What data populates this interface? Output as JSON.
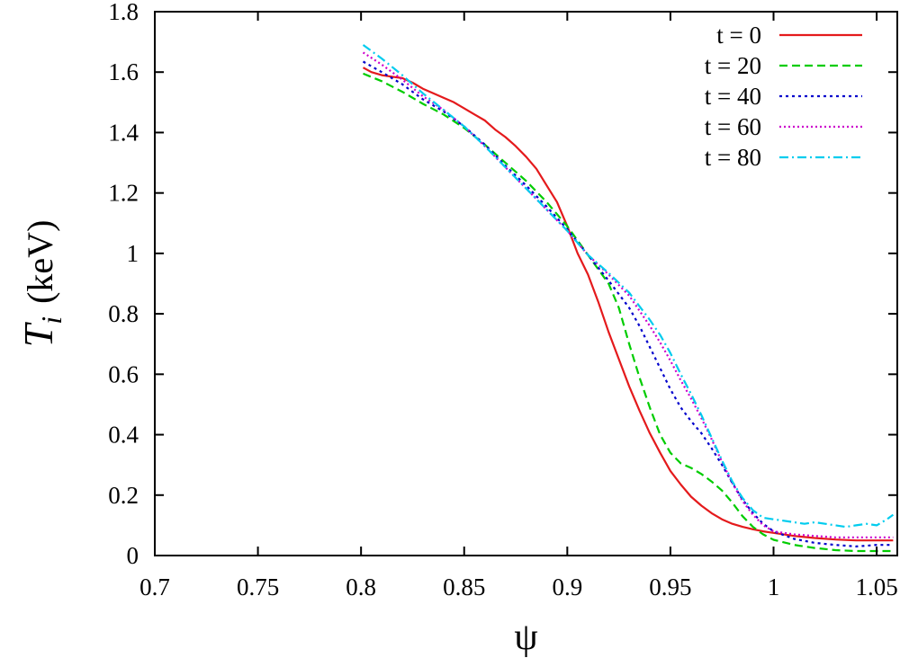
{
  "chart_data": {
    "type": "line",
    "title": "",
    "xlabel": "ψ",
    "ylabel": {
      "symbol": "T",
      "subscript": "i",
      "unit": "(keV)"
    },
    "xlim": [
      0.7,
      1.06
    ],
    "ylim": [
      0,
      1.8
    ],
    "xticks": [
      "0.7",
      "0.75",
      "0.8",
      "0.85",
      "0.9",
      "0.95",
      "1",
      "1.05"
    ],
    "yticks": [
      "0",
      "0.2",
      "0.4",
      "0.6",
      "0.8",
      "1",
      "1.2",
      "1.4",
      "1.6",
      "1.8"
    ],
    "grid": false,
    "legend_position": "top-right",
    "series": [
      {
        "name": "t = 0",
        "color": "#e41a1c",
        "dash": "solid",
        "x": [
          0.801,
          0.805,
          0.81,
          0.815,
          0.82,
          0.825,
          0.83,
          0.835,
          0.84,
          0.845,
          0.85,
          0.855,
          0.86,
          0.865,
          0.87,
          0.875,
          0.88,
          0.885,
          0.89,
          0.895,
          0.9,
          0.905,
          0.91,
          0.915,
          0.92,
          0.925,
          0.93,
          0.935,
          0.94,
          0.945,
          0.95,
          0.955,
          0.96,
          0.965,
          0.97,
          0.975,
          0.98,
          0.985,
          0.99,
          0.995,
          1.0,
          1.01,
          1.02,
          1.03,
          1.04,
          1.05,
          1.058
        ],
        "y": [
          1.615,
          1.6,
          1.59,
          1.585,
          1.58,
          1.565,
          1.545,
          1.53,
          1.515,
          1.5,
          1.48,
          1.46,
          1.44,
          1.41,
          1.385,
          1.355,
          1.32,
          1.28,
          1.225,
          1.17,
          1.09,
          1.0,
          0.93,
          0.84,
          0.74,
          0.65,
          0.56,
          0.48,
          0.405,
          0.34,
          0.28,
          0.235,
          0.195,
          0.165,
          0.14,
          0.12,
          0.105,
          0.095,
          0.087,
          0.08,
          0.075,
          0.065,
          0.058,
          0.053,
          0.05,
          0.05,
          0.05
        ]
      },
      {
        "name": "t = 20",
        "color": "#00cc00",
        "dash": "9,5",
        "x": [
          0.801,
          0.81,
          0.82,
          0.83,
          0.84,
          0.85,
          0.86,
          0.87,
          0.88,
          0.89,
          0.9,
          0.91,
          0.92,
          0.925,
          0.93,
          0.935,
          0.94,
          0.945,
          0.95,
          0.955,
          0.96,
          0.965,
          0.97,
          0.975,
          0.98,
          0.985,
          0.99,
          0.995,
          1.0,
          1.01,
          1.02,
          1.03,
          1.04,
          1.05,
          1.058
        ],
        "y": [
          1.595,
          1.57,
          1.535,
          1.495,
          1.46,
          1.415,
          1.36,
          1.3,
          1.24,
          1.17,
          1.09,
          0.995,
          0.9,
          0.82,
          0.7,
          0.59,
          0.49,
          0.4,
          0.34,
          0.305,
          0.29,
          0.27,
          0.245,
          0.215,
          0.175,
          0.13,
          0.095,
          0.07,
          0.052,
          0.035,
          0.025,
          0.018,
          0.015,
          0.015,
          0.015
        ]
      },
      {
        "name": "t = 40",
        "color": "#0000cc",
        "dash": "3,4",
        "x": [
          0.801,
          0.81,
          0.82,
          0.83,
          0.84,
          0.85,
          0.86,
          0.87,
          0.88,
          0.89,
          0.9,
          0.91,
          0.92,
          0.93,
          0.935,
          0.94,
          0.945,
          0.95,
          0.955,
          0.96,
          0.965,
          0.97,
          0.975,
          0.98,
          0.985,
          0.99,
          0.995,
          1.0,
          1.01,
          1.02,
          1.03,
          1.04,
          1.05,
          1.058
        ],
        "y": [
          1.635,
          1.6,
          1.56,
          1.51,
          1.47,
          1.42,
          1.36,
          1.29,
          1.225,
          1.155,
          1.08,
          0.995,
          0.91,
          0.82,
          0.76,
          0.69,
          0.62,
          0.55,
          0.49,
          0.445,
          0.405,
          0.355,
          0.3,
          0.24,
          0.185,
          0.14,
          0.105,
          0.08,
          0.055,
          0.042,
          0.035,
          0.03,
          0.035,
          0.035
        ]
      },
      {
        "name": "t = 60",
        "color": "#cc00cc",
        "dash": "2,3",
        "x": [
          0.801,
          0.81,
          0.82,
          0.83,
          0.84,
          0.85,
          0.86,
          0.87,
          0.88,
          0.89,
          0.9,
          0.91,
          0.92,
          0.93,
          0.94,
          0.945,
          0.95,
          0.955,
          0.96,
          0.965,
          0.97,
          0.975,
          0.98,
          0.985,
          0.99,
          0.995,
          1.0,
          1.01,
          1.02,
          1.03,
          1.04,
          1.05,
          1.058
        ],
        "y": [
          1.665,
          1.625,
          1.575,
          1.52,
          1.475,
          1.42,
          1.355,
          1.285,
          1.215,
          1.145,
          1.075,
          0.995,
          0.93,
          0.86,
          0.76,
          0.705,
          0.645,
          0.58,
          0.52,
          0.455,
          0.385,
          0.31,
          0.24,
          0.18,
          0.135,
          0.1,
          0.08,
          0.07,
          0.065,
          0.06,
          0.06,
          0.06,
          0.06
        ]
      },
      {
        "name": "t = 80",
        "color": "#00ccee",
        "dash": "10,4,2,4",
        "x": [
          0.801,
          0.81,
          0.82,
          0.83,
          0.84,
          0.85,
          0.86,
          0.87,
          0.88,
          0.89,
          0.9,
          0.91,
          0.92,
          0.93,
          0.94,
          0.945,
          0.95,
          0.955,
          0.96,
          0.965,
          0.97,
          0.975,
          0.98,
          0.985,
          0.99,
          0.995,
          1.0,
          1.005,
          1.01,
          1.015,
          1.02,
          1.025,
          1.03,
          1.035,
          1.04,
          1.045,
          1.05,
          1.055,
          1.058
        ],
        "y": [
          1.69,
          1.645,
          1.59,
          1.53,
          1.475,
          1.42,
          1.355,
          1.285,
          1.215,
          1.145,
          1.075,
          0.995,
          0.935,
          0.87,
          0.78,
          0.73,
          0.67,
          0.6,
          0.535,
          0.465,
          0.39,
          0.315,
          0.245,
          0.19,
          0.15,
          0.125,
          0.12,
          0.115,
          0.11,
          0.105,
          0.11,
          0.105,
          0.1,
          0.095,
          0.1,
          0.105,
          0.1,
          0.12,
          0.135
        ]
      }
    ]
  }
}
